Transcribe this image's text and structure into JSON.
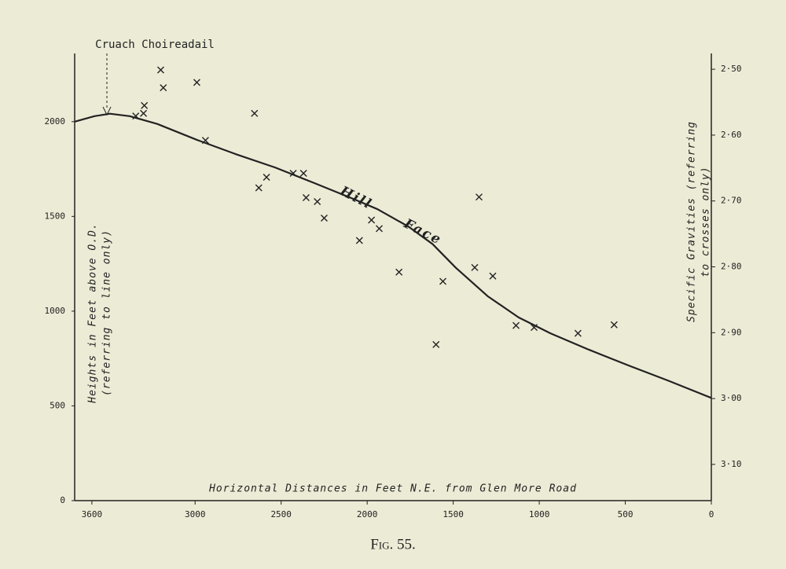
{
  "chart_data": {
    "type": "line",
    "caption": "Fig. 55.",
    "annotations": [
      "Cruach Choireadail",
      "Hill Face"
    ],
    "x_label": "Horizontal Distances in Feet N.E. from Glen More Road",
    "y_label": [
      "Heights in Feet above O.D.",
      "(referring to line only)"
    ],
    "y2_label": [
      "Specific Gravities (referring",
      "to crosses only)"
    ],
    "xlim": [
      3700,
      0
    ],
    "xticks": [
      3600,
      3000,
      2500,
      2000,
      1500,
      1000,
      500,
      0
    ],
    "ylim": [
      0,
      2360
    ],
    "yticks": [
      0,
      500,
      1000,
      1500,
      2000
    ],
    "y2lim": [
      3.155,
      2.476
    ],
    "y2ticks": [
      {
        "value": 2.5,
        "label": "2·50"
      },
      {
        "value": 2.6,
        "label": "2·60"
      },
      {
        "value": 2.7,
        "label": "2·70"
      },
      {
        "value": 2.8,
        "label": "2·80"
      },
      {
        "value": 2.9,
        "label": "2·90"
      },
      {
        "value": 3.0,
        "label": "3·00"
      },
      {
        "value": 3.1,
        "label": "3·10"
      }
    ],
    "series": [
      {
        "type": "line",
        "color": "#222222",
        "x": [
          3700,
          3585,
          3495,
          3380,
          3220,
          2990,
          2765,
          2535,
          2305,
          2080,
          1940,
          1760,
          1620,
          1485,
          1300,
          1120,
          935,
          710,
          480,
          250,
          0
        ],
        "values": [
          2000,
          2029,
          2042,
          2029,
          1988,
          1904,
          1829,
          1758,
          1675,
          1592,
          1538,
          1446,
          1354,
          1229,
          1079,
          967,
          883,
          796,
          713,
          633,
          542
        ]
      },
      {
        "type": "scatter",
        "axis": "y2",
        "color": "#222222",
        "x": [
          3200,
          3185,
          3295,
          3300,
          3345,
          2990,
          2940,
          2655,
          2630,
          2585,
          2430,
          2370,
          2355,
          2290,
          2250,
          2045,
          1975,
          1930,
          1815,
          1600,
          1560,
          1375,
          1350,
          1270,
          1135,
          1030,
          775,
          565
        ],
        "values": [
          2.501,
          2.528,
          2.555,
          2.567,
          2.571,
          2.52,
          2.608,
          2.567,
          2.68,
          2.664,
          2.658,
          2.658,
          2.695,
          2.701,
          2.726,
          2.76,
          2.729,
          2.742,
          2.808,
          2.918,
          2.822,
          2.801,
          2.694,
          2.814,
          2.889,
          2.892,
          2.901,
          2.888
        ]
      }
    ]
  }
}
